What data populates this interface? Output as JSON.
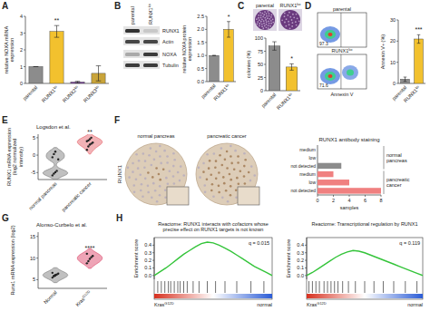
{
  "panel_labels": [
    "A",
    "B",
    "C",
    "D",
    "E",
    "F",
    "G",
    "H"
  ],
  "blot": {
    "lanes": [
      "parental",
      "RUNX1ko"
    ],
    "rows": [
      "RUNX1",
      "Actin",
      "NOXA",
      "Tubulin"
    ]
  },
  "colony_images": {
    "labels": [
      "parental",
      "RUNX1ko"
    ]
  },
  "flow_plots": {
    "labels": [
      "parental",
      "RUNX1ko"
    ],
    "gate_values": [
      "97.3",
      "71.6"
    ],
    "x_label": "Annexin V"
  },
  "ihc_images": {
    "labels": [
      "normal pancreas",
      "pancreatic cancer"
    ],
    "stain": "RUNX1"
  },
  "chart_data": [
    {
      "type": "bar",
      "y_label": "relative NOXA mRNA expression",
      "categories": [
        "parental",
        "RUNX1ko",
        "RUNX2ko",
        "RUNX3ko"
      ],
      "values": [
        1,
        3.1,
        0.08,
        0.6
      ],
      "errors": [
        0,
        0.35,
        0.05,
        0.45
      ],
      "colors": [
        "#8c8c8c",
        "#f2c12e",
        "#7b3f9e",
        "#c9a43a"
      ],
      "ylim": [
        0,
        4
      ],
      "yticks": [
        0,
        1,
        2,
        3,
        4
      ],
      "annotations": [
        {
          "text": "**",
          "x": 1
        }
      ]
    },
    {
      "type": "bar",
      "y_label": "relative NOXA protein expression",
      "categories": [
        "parental",
        "RUNX1ko"
      ],
      "values": [
        1,
        2.0
      ],
      "errors": [
        0,
        0.3
      ],
      "colors": [
        "#8c8c8c",
        "#f2c12e"
      ],
      "ylim": [
        0,
        2.5
      ],
      "yticks": [
        {
          "value": 0,
          "label": "0.0"
        },
        {
          "value": 0.5,
          "label": "0.5"
        },
        {
          "value": 1,
          "label": "1.0"
        },
        {
          "value": 1.5,
          "label": "1.5"
        },
        {
          "value": 2,
          "label": "2.0"
        },
        {
          "value": 2.5,
          "label": "2.5"
        }
      ],
      "annotations": [
        {
          "text": "*",
          "x": 1
        }
      ]
    },
    {
      "type": "bar",
      "y_label": "colonies (%)",
      "categories": [
        "parental",
        "RUNX1ko"
      ],
      "values": [
        85,
        45
      ],
      "errors": [
        8,
        6
      ],
      "colors": [
        "#8c8c8c",
        "#f2c12e"
      ],
      "ylim": [
        0,
        100
      ],
      "yticks": [
        0,
        25,
        50,
        75,
        100
      ],
      "annotations": [
        {
          "text": "*",
          "x": 1
        }
      ]
    },
    {
      "type": "bar",
      "y_label": "Annexin V+ (%)",
      "categories": [
        "parental",
        "RUNX1ko"
      ],
      "values": [
        2,
        21
      ],
      "errors": [
        1,
        2
      ],
      "colors": [
        "#8c8c8c",
        "#f2c12e"
      ],
      "ylim": [
        0,
        30
      ],
      "yticks": [
        0,
        10,
        20,
        30
      ],
      "annotations": [
        {
          "text": "***",
          "x": 1
        }
      ]
    },
    {
      "type": "violin",
      "title": "Logsdon et al.",
      "y_label": "RUNX1 mRNA expression (log2 normalized intensity)",
      "categories": [
        "normal pancreas",
        "pancreatic cancer"
      ],
      "values": [
        [
          -5.8,
          -5.3,
          -4.9,
          -4.5,
          -1.2,
          -0.6,
          0.3,
          1.0
        ],
        [
          1.5,
          2.5,
          3.0,
          3.3,
          3.6,
          4.0,
          4.2,
          4.6,
          5.0
        ]
      ],
      "colors": [
        "#8c8c8c",
        "#e8737a"
      ],
      "ylim": [
        -7,
        6
      ],
      "yticks": [
        -5,
        0,
        5
      ],
      "annotations": [
        {
          "text": "**",
          "x": 1
        }
      ]
    },
    {
      "type": "bar",
      "orientation": "horizontal",
      "title": "RUNX1 antibody staining",
      "x_label": "samples",
      "categories": [
        "medium",
        "low",
        "not detected",
        "medium",
        "low",
        "not detected"
      ],
      "values": [
        0,
        0,
        3,
        2,
        4,
        8
      ],
      "colors": [
        "#8c8c8c",
        "#8c8c8c",
        "#8c8c8c",
        "#f08080",
        "#f08080",
        "#f08080"
      ],
      "xlim": [
        0,
        8
      ],
      "xticks": [
        0,
        2,
        4,
        6,
        8
      ],
      "groups": [
        {
          "name": "normal pancreas",
          "categories": [
            0,
            1,
            2
          ]
        },
        {
          "name": "pancreatic cancer",
          "categories": [
            3,
            4,
            5
          ]
        }
      ]
    },
    {
      "type": "violin",
      "title": "Alonso-Curbelo et al.",
      "y_label": "Runx1 mRNA expression (log2)",
      "categories": [
        "Normal",
        "KrasG12D"
      ],
      "values": [
        [
          5.5,
          5.8,
          6.0,
          6.2,
          6.4,
          6.6,
          5.9,
          6.1
        ],
        [
          8.8,
          9.3,
          9.8,
          10.2,
          10.5,
          11.0
        ]
      ],
      "colors": [
        "#8c8c8c",
        "#e05a7a"
      ],
      "ylim": [
        3,
        16
      ],
      "yticks": [
        5,
        10,
        15
      ],
      "annotations": [
        {
          "text": "****",
          "x": 1
        }
      ]
    },
    {
      "type": "line",
      "title": "Reactome: RUNX1 interacts with cofactors whose precise effect on RUNX1 targets is not known",
      "y_label": "Enrichment score",
      "x": [
        0,
        5,
        10,
        15,
        20,
        25,
        30,
        35,
        40,
        45,
        50,
        55,
        60,
        65,
        70,
        75,
        80,
        85,
        90,
        95,
        100
      ],
      "values": [
        0,
        0.05,
        0.1,
        0.16,
        0.22,
        0.28,
        0.33,
        0.38,
        0.42,
        0.44,
        0.43,
        0.4,
        0.36,
        0.32,
        0.27,
        0.22,
        0.17,
        0.12,
        0.08,
        0.04,
        0
      ],
      "color": "#34c43a",
      "xlim": [
        0,
        100
      ],
      "ylim": [
        -0.05,
        0.5
      ],
      "yticks": [
        {
          "value": 0,
          "label": "0.0"
        },
        {
          "value": 0.1,
          "label": "0.1"
        },
        {
          "value": 0.2,
          "label": "0.2"
        },
        {
          "value": 0.3,
          "label": "0.3"
        },
        {
          "value": 0.4,
          "label": "0.4"
        }
      ],
      "tick_labels": "y",
      "hits": [
        3,
        6,
        9,
        12,
        14,
        17,
        20,
        22,
        25,
        28,
        33,
        38,
        45,
        52,
        60,
        70,
        82,
        93
      ],
      "x_end_labels": [
        "KrasG12D",
        "normal"
      ],
      "annotations": [
        {
          "text": "q = 0.015"
        }
      ]
    },
    {
      "type": "line",
      "title": "Reactome: Transcriptional regulation by RUNX1",
      "y_label": "Enrichment score",
      "x": [
        0,
        5,
        10,
        15,
        20,
        25,
        30,
        35,
        40,
        45,
        50,
        55,
        60,
        65,
        70,
        75,
        80,
        85,
        90,
        95,
        100
      ],
      "values": [
        0,
        0.04,
        0.09,
        0.14,
        0.19,
        0.24,
        0.28,
        0.31,
        0.33,
        0.32,
        0.3,
        0.27,
        0.24,
        0.21,
        0.18,
        0.15,
        0.12,
        0.09,
        0.06,
        0.03,
        0
      ],
      "color": "#34c43a",
      "xlim": [
        0,
        100
      ],
      "ylim": [
        -0.05,
        0.5
      ],
      "yticks": [
        {
          "value": 0,
          "label": "0.0"
        },
        {
          "value": 0.1,
          "label": "0.1"
        },
        {
          "value": 0.2,
          "label": "0.2"
        },
        {
          "value": 0.3,
          "label": "0.3"
        },
        {
          "value": 0.4,
          "label": "0.4"
        }
      ],
      "tick_labels": "y",
      "hits": [
        2,
        5,
        8,
        11,
        15,
        18,
        21,
        24,
        27,
        31,
        36,
        42,
        50,
        58,
        66,
        75,
        85,
        95
      ],
      "x_end_labels": [
        "KrasG12D",
        "normal"
      ],
      "annotations": [
        {
          "text": "q = 0.119"
        }
      ]
    }
  ]
}
